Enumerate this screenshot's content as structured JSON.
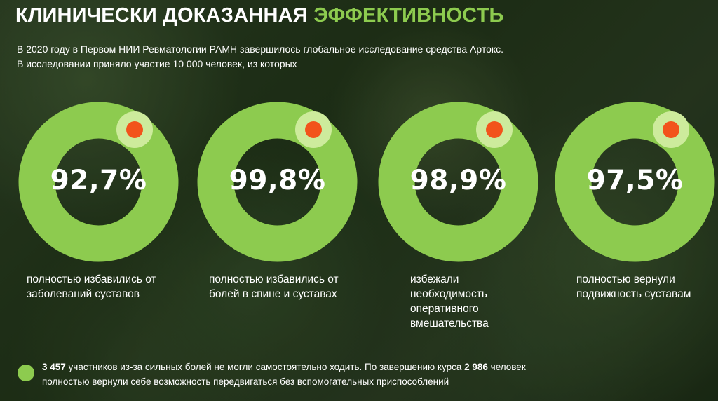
{
  "title": {
    "main": "КЛИНИЧЕСКИ ДОКАЗАННАЯ",
    "accent": "ЭФФЕКТИВНОСТЬ"
  },
  "intro": "В 2020 году в Первом НИИ Ревматологии РАМН завершилось глобальное исследование средства Артокс. В исследовании приняло участие 10 000 человек, из которых",
  "stats": [
    {
      "value": "92,7%",
      "caption": "полностью избавились от заболеваний суставов"
    },
    {
      "value": "99,8%",
      "caption": "полностью избавились от болей в спине и суставах"
    },
    {
      "value": "98,9%",
      "caption": "избежали необходимость оперативного вмешательства"
    },
    {
      "value": "97,5%",
      "caption": "полностью вернули подвижность суставам"
    }
  ],
  "footer": {
    "count1": "3 457",
    "text1": " участников из-за сильных болей не могли самостоятельно ходить. По завершению курса ",
    "count2": "2 986",
    "text2": " человек полностью вернули себе возможность передвигаться без вспомогательных приспособлений"
  },
  "colors": {
    "accent_green": "#8dcb4f",
    "ring_green": "#8dcb4f",
    "dot_light": "#cdeb9c",
    "dot_orange": "#f2531b"
  }
}
